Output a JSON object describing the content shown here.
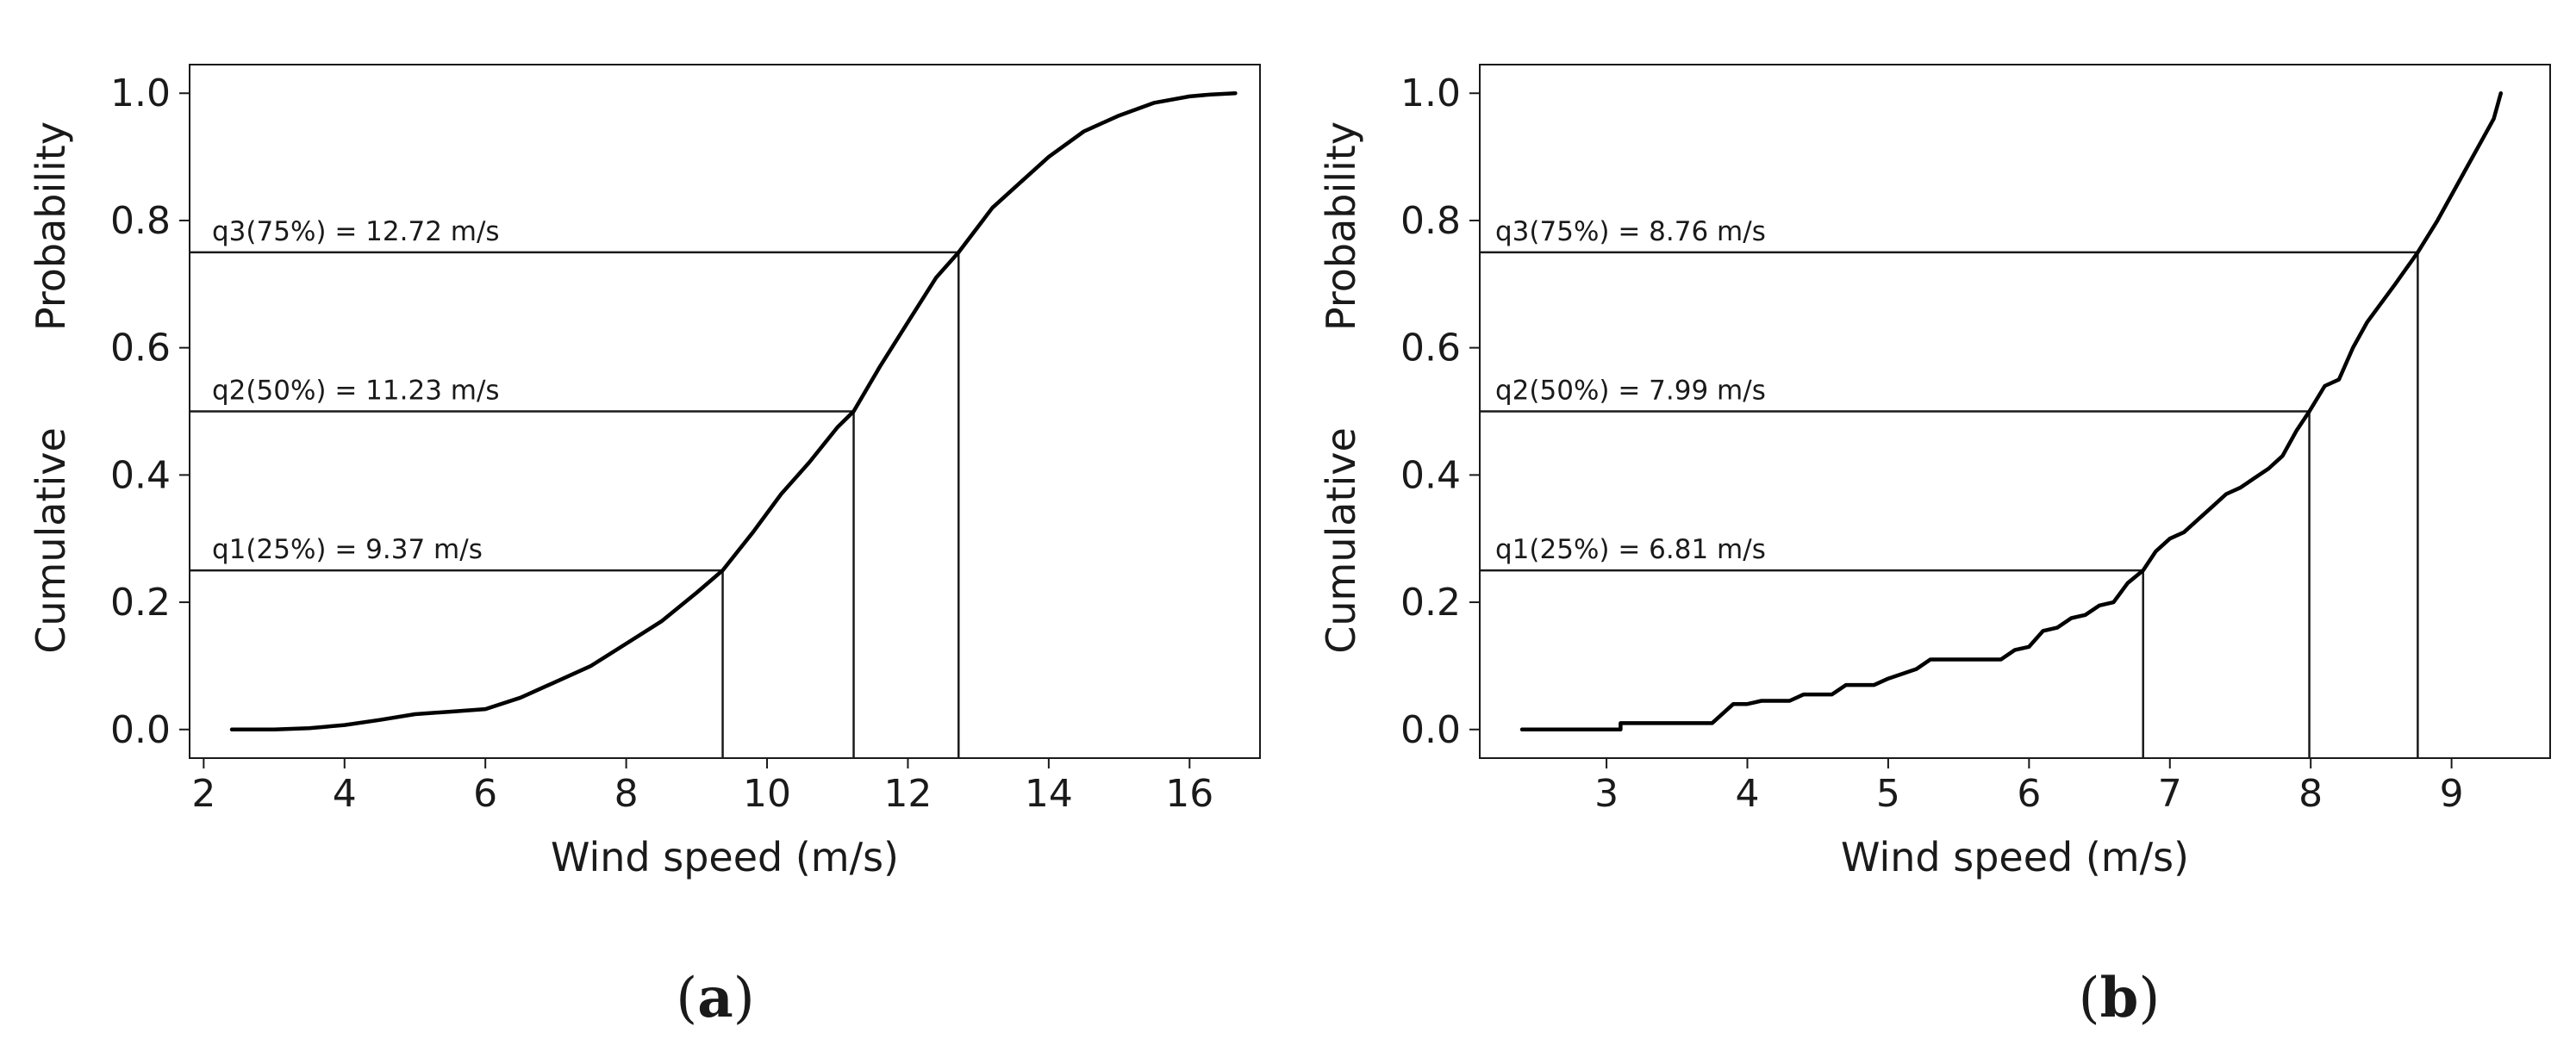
{
  "chart_data": [
    {
      "id": "a",
      "type": "line",
      "caption_open": "(",
      "caption_letter": "a",
      "caption_close": ")",
      "xlabel": "Wind speed (m/s)",
      "ylabel_word1": "Cumulative",
      "ylabel_word2": "Probability",
      "xlim": [
        1.8,
        17.0
      ],
      "ylim": [
        -0.045,
        1.045
      ],
      "xticks": [
        2,
        4,
        6,
        8,
        10,
        12,
        14,
        16
      ],
      "xtick_labels": [
        "2",
        "4",
        "6",
        "8",
        "10",
        "12",
        "14",
        "16"
      ],
      "yticks": [
        0.0,
        0.2,
        0.4,
        0.6,
        0.8,
        1.0
      ],
      "ytick_labels": [
        "0.0",
        "0.2",
        "0.4",
        "0.6",
        "0.8",
        "1.0"
      ],
      "quantiles": [
        {
          "p": 0.25,
          "value": 9.37,
          "label": "q1(25%) = 9.37 m/s"
        },
        {
          "p": 0.5,
          "value": 11.23,
          "label": "q2(50%) = 11.23 m/s"
        },
        {
          "p": 0.75,
          "value": 12.72,
          "label": "q3(75%) = 12.72 m/s"
        }
      ],
      "cdf_x": [
        2.4,
        3.0,
        3.5,
        4.0,
        4.5,
        5.0,
        5.5,
        6.0,
        6.5,
        7.0,
        7.5,
        8.0,
        8.5,
        9.0,
        9.37,
        9.8,
        10.2,
        10.6,
        11.0,
        11.23,
        11.6,
        12.0,
        12.4,
        12.72,
        13.2,
        13.6,
        14.0,
        14.5,
        15.0,
        15.5,
        16.0,
        16.3,
        16.65
      ],
      "cdf_y": [
        0.0,
        0.0,
        0.002,
        0.007,
        0.015,
        0.024,
        0.028,
        0.032,
        0.05,
        0.075,
        0.1,
        0.135,
        0.17,
        0.215,
        0.25,
        0.31,
        0.37,
        0.42,
        0.475,
        0.5,
        0.57,
        0.64,
        0.71,
        0.75,
        0.82,
        0.86,
        0.9,
        0.94,
        0.965,
        0.985,
        0.995,
        0.998,
        1.0
      ]
    },
    {
      "id": "b",
      "type": "line",
      "caption_open": "(",
      "caption_letter": "b",
      "caption_close": ")",
      "xlabel": "Wind speed (m/s)",
      "ylabel_word1": "Cumulative",
      "ylabel_word2": "Probability",
      "xlim": [
        2.1,
        9.7
      ],
      "ylim": [
        -0.045,
        1.045
      ],
      "xticks": [
        3,
        4,
        5,
        6,
        7,
        8,
        9
      ],
      "xtick_labels": [
        "3",
        "4",
        "5",
        "6",
        "7",
        "8",
        "9"
      ],
      "yticks": [
        0.0,
        0.2,
        0.4,
        0.6,
        0.8,
        1.0
      ],
      "ytick_labels": [
        "0.0",
        "0.2",
        "0.4",
        "0.6",
        "0.8",
        "1.0"
      ],
      "quantiles": [
        {
          "p": 0.25,
          "value": 6.81,
          "label": "q1(25%) = 6.81 m/s"
        },
        {
          "p": 0.5,
          "value": 7.99,
          "label": "q2(50%) = 7.99 m/s"
        },
        {
          "p": 0.75,
          "value": 8.76,
          "label": "q3(75%) = 8.76 m/s"
        }
      ],
      "cdf_x": [
        2.4,
        3.1,
        3.1,
        3.75,
        3.9,
        4.0,
        4.1,
        4.3,
        4.4,
        4.6,
        4.7,
        4.9,
        5.0,
        5.2,
        5.3,
        5.8,
        5.9,
        6.0,
        6.1,
        6.2,
        6.3,
        6.4,
        6.5,
        6.6,
        6.7,
        6.81,
        6.9,
        7.0,
        7.1,
        7.2,
        7.3,
        7.4,
        7.5,
        7.6,
        7.7,
        7.8,
        7.9,
        7.99,
        8.1,
        8.2,
        8.3,
        8.4,
        8.5,
        8.6,
        8.76,
        8.9,
        9.0,
        9.1,
        9.2,
        9.3,
        9.35
      ],
      "cdf_y": [
        0.0,
        0.0,
        0.01,
        0.01,
        0.04,
        0.04,
        0.045,
        0.045,
        0.055,
        0.055,
        0.07,
        0.07,
        0.08,
        0.095,
        0.11,
        0.11,
        0.125,
        0.13,
        0.155,
        0.16,
        0.175,
        0.18,
        0.195,
        0.2,
        0.23,
        0.25,
        0.28,
        0.3,
        0.31,
        0.33,
        0.35,
        0.37,
        0.38,
        0.395,
        0.41,
        0.43,
        0.47,
        0.5,
        0.54,
        0.55,
        0.6,
        0.64,
        0.67,
        0.7,
        0.75,
        0.8,
        0.84,
        0.88,
        0.92,
        0.96,
        1.0
      ]
    }
  ]
}
